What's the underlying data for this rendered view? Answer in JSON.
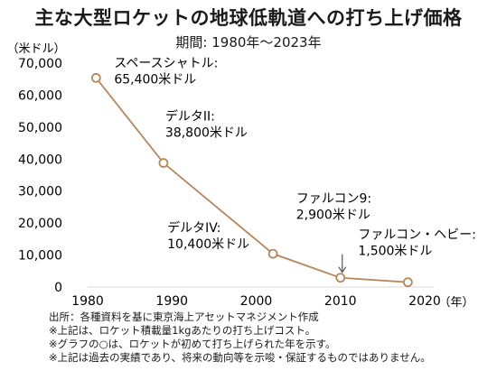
{
  "chart_data": {
    "type": "line",
    "title": "主な大型ロケットの地球低軌道への打ち上げ価格",
    "subtitle": "期間: 1980年～2023年",
    "ylabel": "（米ドル）",
    "xlabel": "（年）",
    "xlim": [
      1980,
      2020
    ],
    "ylim": [
      0,
      70000
    ],
    "xticks": [
      1980,
      1990,
      2000,
      2010,
      2020
    ],
    "yticks": [
      0,
      10000,
      20000,
      30000,
      40000,
      50000,
      60000,
      70000
    ],
    "ytick_labels": [
      "0",
      "10,000",
      "20,000",
      "30,000",
      "40,000",
      "50,000",
      "60,000",
      "70,000"
    ],
    "line_color": "#b8865b",
    "marker": "open-circle",
    "points": [
      {
        "x": 1981,
        "y": 65400,
        "label1": "スペースシャトル:",
        "label2": "65,400米ドル"
      },
      {
        "x": 1989,
        "y": 38800,
        "label1": "デルタII:",
        "label2": "38,800米ドル"
      },
      {
        "x": 2002,
        "y": 10400,
        "label1": "デルタIV:",
        "label2": "10,400米ドル"
      },
      {
        "x": 2010,
        "y": 2900,
        "label1": "ファルコン9:",
        "label2": "2,900米ドル"
      },
      {
        "x": 2018,
        "y": 1500,
        "label1": "ファルコン・ヘビー:",
        "label2": "1,500米ドル"
      }
    ]
  },
  "notes": {
    "line1": "出所：各種資料を基に東京海上アセットマネジメント作成",
    "line2": "※上記は、ロケット積載量1kgあたりの打ち上げコスト。",
    "line3": "※グラフの○は、ロケットが初めて打ち上げられた年を示す。",
    "line4": "※上記は過去の実績であり、将来の動向等を示唆・保証するものではありません。"
  }
}
